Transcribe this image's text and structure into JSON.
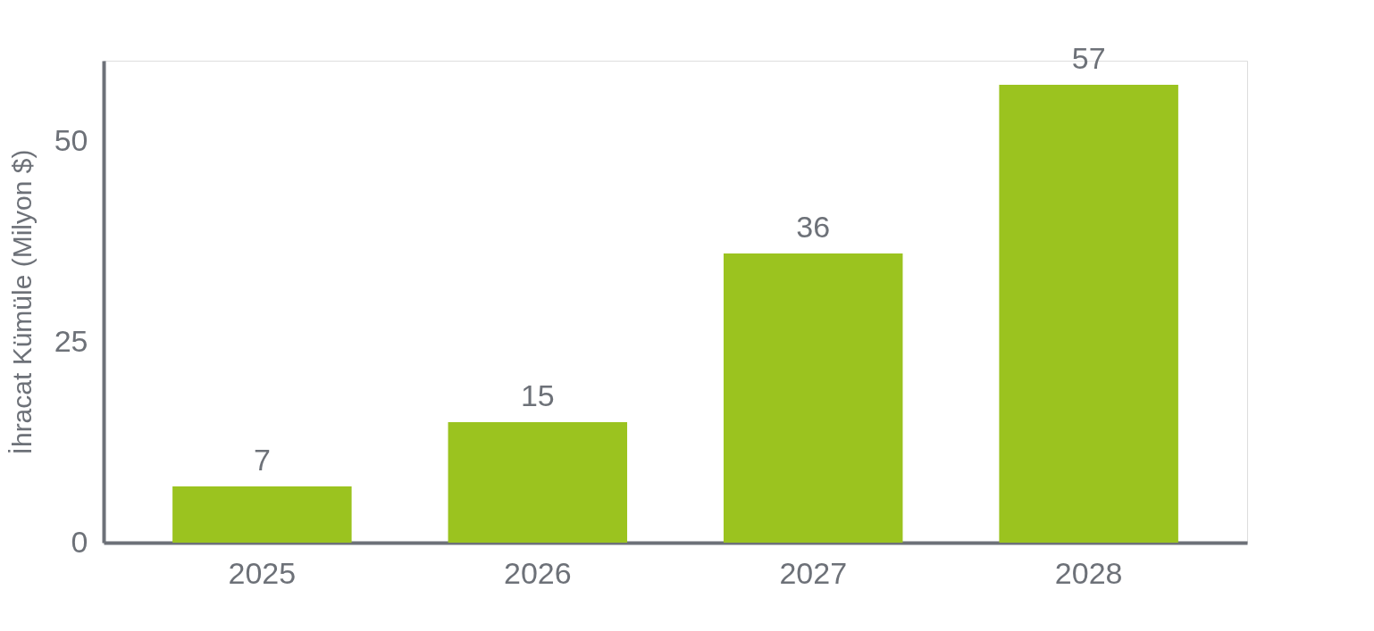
{
  "chart_data": {
    "type": "bar",
    "ylabel": "İhracat Kümüle (Milyon $)",
    "categories": [
      "2025",
      "2026",
      "2027",
      "2028"
    ],
    "values": [
      7,
      15,
      36,
      57
    ],
    "color": "#9bc31f",
    "ylim": [
      0,
      60
    ],
    "yticks": [
      0,
      25,
      50
    ],
    "data_labels": true,
    "grid": false
  }
}
